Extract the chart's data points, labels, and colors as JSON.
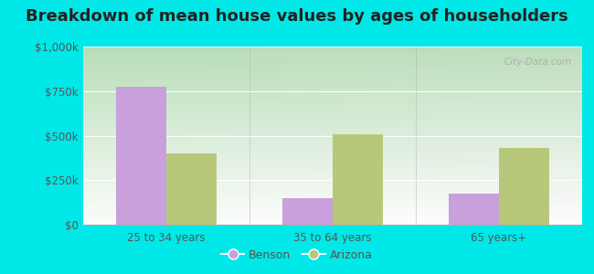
{
  "title": "Breakdown of mean house values by ages of householders",
  "categories": [
    "25 to 34 years",
    "35 to 64 years",
    "65 years+"
  ],
  "benson_values": [
    775000,
    150000,
    175000
  ],
  "arizona_values": [
    400000,
    510000,
    430000
  ],
  "benson_color": "#c9a0dc",
  "arizona_color": "#b8c87a",
  "background_outer": "#00e8e8",
  "background_inner_topleft": "#b8dfc0",
  "background_inner_bottomright": "#e8fae8",
  "ylim": [
    0,
    1000000
  ],
  "yticks": [
    0,
    250000,
    500000,
    750000,
    1000000
  ],
  "ytick_labels": [
    "$0",
    "$250k",
    "$500k",
    "$750k",
    "$1,000k"
  ],
  "bar_width": 0.3,
  "title_fontsize": 13,
  "legend_labels": [
    "Benson",
    "Arizona"
  ],
  "watermark": "City-Data.com"
}
